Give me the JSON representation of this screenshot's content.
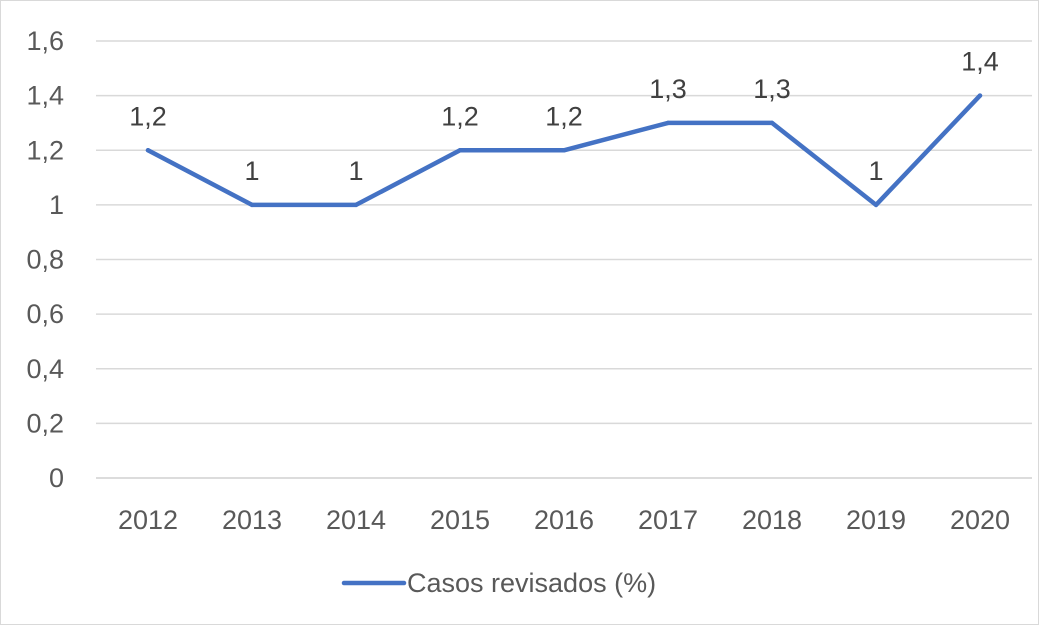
{
  "chart_data": {
    "type": "line",
    "categories": [
      "2012",
      "2013",
      "2014",
      "2015",
      "2016",
      "2017",
      "2018",
      "2019",
      "2020"
    ],
    "series": [
      {
        "name": "Casos revisados (%)",
        "values": [
          1.2,
          1,
          1,
          1.2,
          1.2,
          1.3,
          1.3,
          1,
          1.4
        ],
        "data_labels": [
          "1,2",
          "1",
          "1",
          "1,2",
          "1,2",
          "1,3",
          "1,3",
          "1",
          "1,4"
        ],
        "color": "#4472c4"
      }
    ],
    "y_ticks": [
      {
        "value": 0,
        "label": "0"
      },
      {
        "value": 0.2,
        "label": "0,2"
      },
      {
        "value": 0.4,
        "label": "0,4"
      },
      {
        "value": 0.6,
        "label": "0,6"
      },
      {
        "value": 0.8,
        "label": "0,8"
      },
      {
        "value": 1,
        "label": "1"
      },
      {
        "value": 1.2,
        "label": "1,2"
      },
      {
        "value": 1.4,
        "label": "1,4"
      },
      {
        "value": 1.6,
        "label": "1,6"
      }
    ],
    "ylim": [
      0,
      1.6
    ],
    "grid": true,
    "legend_position": "bottom",
    "title": "",
    "xlabel": "",
    "ylabel": ""
  }
}
